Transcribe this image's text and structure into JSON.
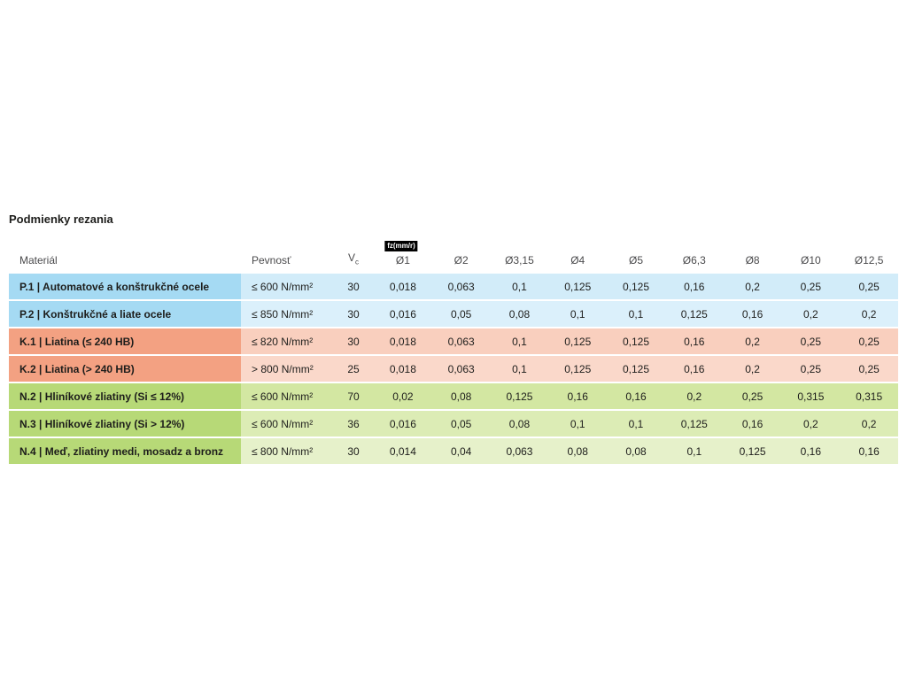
{
  "page": {
    "title": "Podmienky rezania"
  },
  "colors": {
    "steel_material": "#a5daf3",
    "steel_row": "#d2ecf9",
    "cast_iron_material": "#f3a182",
    "cast_iron_row": "#f9cfbe",
    "nonferrous_material": "#b7d977",
    "nonferrous_row": "#d3e7a2",
    "badge_bg": "#000000",
    "badge_text": "#ffffff",
    "header_text": "#4a4a4c",
    "body_text": "#1d1d1b"
  },
  "table": {
    "headers": {
      "material": "Materiál",
      "strength": "Pevnosť",
      "vc_v": "V",
      "vc_sub": "c",
      "fz_badge": "fz(mm/r)",
      "diameters": [
        "Ø1",
        "Ø2",
        "Ø3,15",
        "Ø4",
        "Ø5",
        "Ø6,3",
        "Ø8",
        "Ø10",
        "Ø12,5"
      ]
    },
    "rows": [
      {
        "group": "P",
        "material": "P.1 | Automatové a konštrukčné ocele",
        "strength": "≤ 600 N/mm²",
        "vc": "30",
        "values": [
          "0,018",
          "0,063",
          "0,1",
          "0,125",
          "0,125",
          "0,16",
          "0,2",
          "0,25",
          "0,25"
        ]
      },
      {
        "group": "P",
        "material": "P.2 | Konštrukčné a liate ocele",
        "strength": "≤ 850 N/mm²",
        "vc": "30",
        "values": [
          "0,016",
          "0,05",
          "0,08",
          "0,1",
          "0,1",
          "0,125",
          "0,16",
          "0,2",
          "0,2"
        ]
      },
      {
        "group": "K",
        "material": "K.1 | Liatina (≤ 240 HB)",
        "strength": "≤ 820 N/mm²",
        "vc": "30",
        "values": [
          "0,018",
          "0,063",
          "0,1",
          "0,125",
          "0,125",
          "0,16",
          "0,2",
          "0,25",
          "0,25"
        ]
      },
      {
        "group": "K",
        "material": "K.2 | Liatina (> 240 HB)",
        "strength": "> 800 N/mm²",
        "vc": "25",
        "values": [
          "0,018",
          "0,063",
          "0,1",
          "0,125",
          "0,125",
          "0,16",
          "0,2",
          "0,25",
          "0,25"
        ]
      },
      {
        "group": "N",
        "material": "N.2 | Hliníkové zliatiny (Si ≤ 12%)",
        "strength": "≤ 600 N/mm²",
        "vc": "70",
        "values": [
          "0,02",
          "0,08",
          "0,125",
          "0,16",
          "0,16",
          "0,2",
          "0,25",
          "0,315",
          "0,315"
        ]
      },
      {
        "group": "N",
        "material": "N.3 | Hliníkové zliatiny (Si > 12%)",
        "strength": "≤ 600 N/mm²",
        "vc": "36",
        "values": [
          "0,016",
          "0,05",
          "0,08",
          "0,1",
          "0,1",
          "0,125",
          "0,16",
          "0,2",
          "0,2"
        ]
      },
      {
        "group": "N",
        "material": "N.4 | Meď, zliatiny medi, mosadz a bronz",
        "strength": "≤ 800 N/mm²",
        "vc": "30",
        "values": [
          "0,014",
          "0,04",
          "0,063",
          "0,08",
          "0,08",
          "0,1",
          "0,125",
          "0,16",
          "0,16"
        ]
      }
    ]
  }
}
